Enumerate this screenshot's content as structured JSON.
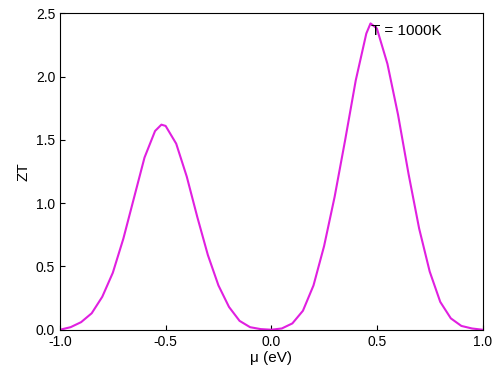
{
  "chart_data": {
    "type": "line",
    "x_label": "μ (eV)",
    "y_label": "ZT",
    "annotations": [
      "T = 1000K"
    ],
    "x": [
      -1.0,
      -0.95,
      -0.9,
      -0.85,
      -0.8,
      -0.75,
      -0.7,
      -0.65,
      -0.6,
      -0.55,
      -0.52,
      -0.5,
      -0.45,
      -0.4,
      -0.35,
      -0.3,
      -0.25,
      -0.2,
      -0.15,
      -0.1,
      -0.05,
      0.0,
      0.05,
      0.1,
      0.15,
      0.2,
      0.25,
      0.3,
      0.35,
      0.4,
      0.45,
      0.47,
      0.5,
      0.55,
      0.6,
      0.65,
      0.7,
      0.75,
      0.8,
      0.85,
      0.9,
      0.95,
      1.0
    ],
    "series": [
      {
        "name": "ZT",
        "color": "#e020e0",
        "line_style": "solid",
        "values": [
          0.0,
          0.02,
          0.06,
          0.13,
          0.26,
          0.45,
          0.72,
          1.04,
          1.36,
          1.57,
          1.62,
          1.61,
          1.47,
          1.21,
          0.89,
          0.59,
          0.35,
          0.18,
          0.07,
          0.02,
          0.005,
          0.0,
          0.01,
          0.05,
          0.15,
          0.35,
          0.66,
          1.05,
          1.5,
          1.97,
          2.34,
          2.42,
          2.38,
          2.1,
          1.7,
          1.23,
          0.8,
          0.46,
          0.22,
          0.09,
          0.03,
          0.01,
          0.0
        ]
      }
    ],
    "xlim": [
      -1.0,
      1.0
    ],
    "xticks": [
      {
        "value": -1.0,
        "label": "-1.0"
      },
      {
        "value": -0.5,
        "label": "-0.5"
      },
      {
        "value": 0.0,
        "label": "0.0"
      },
      {
        "value": 0.5,
        "label": "0.5"
      },
      {
        "value": 1.0,
        "label": "1.0"
      }
    ],
    "ylim": [
      0.0,
      2.5
    ],
    "yticks": [
      {
        "value": 0.0,
        "label": "0.0"
      },
      {
        "value": 0.5,
        "label": "0.5"
      },
      {
        "value": 1.0,
        "label": "1.0"
      },
      {
        "value": 1.5,
        "label": "1.5"
      },
      {
        "value": 2.0,
        "label": "2.0"
      },
      {
        "value": 2.5,
        "label": "2.5"
      }
    ],
    "grid": false
  }
}
